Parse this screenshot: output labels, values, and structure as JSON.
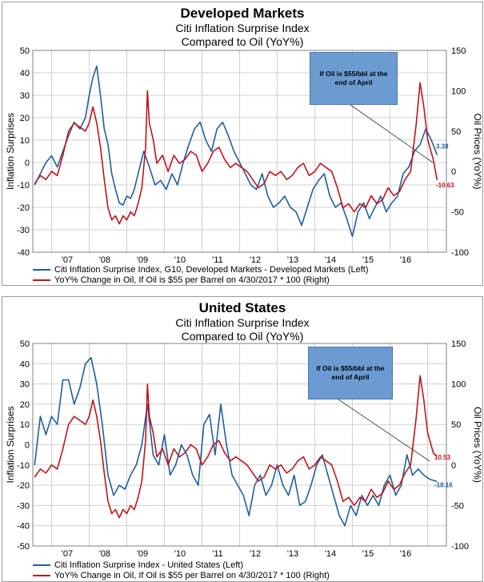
{
  "charts_meta": {
    "colors": {
      "blue": "#1f5f9e",
      "red": "#c0141c",
      "grid": "#d0d0d0"
    }
  },
  "chart_data": [
    {
      "type": "line",
      "title": "Developed Markets",
      "subtitle_1": "Citi Inflation Surprise Index",
      "subtitle_2": "Compared to Oil (YoY%)",
      "ylabel_left": "Inflation Surprises",
      "ylabel_right": "Oil Prices (YoY%)",
      "ylim_left": [
        -40,
        50
      ],
      "ylim_right": [
        -100,
        150
      ],
      "yticks_left": [
        "50",
        "40",
        "30",
        "20",
        "10",
        "0",
        "-10",
        "-20",
        "-30",
        "-40"
      ],
      "yticks_right": [
        "150",
        "100",
        "50",
        "0",
        "-50",
        "-100"
      ],
      "x_ticks": [
        "'07",
        "'08",
        "'09",
        "'10",
        "'11",
        "'12",
        "'13",
        "'14",
        "'15",
        "'16"
      ],
      "xlim": [
        2006.5,
        2017.5
      ],
      "annotation": "If Oil is $55/bbl at the end of April",
      "end_label_blue": "3.38",
      "end_label_red": "-10.63",
      "series": [
        {
          "name": "Citi Inflation Surprise Index, G10, Developed Markets - Developed Markets (Left)",
          "axis": "left",
          "color": "#1f5f9e",
          "x": [
            2006.55,
            2006.7,
            2006.85,
            2007.0,
            2007.15,
            2007.3,
            2007.45,
            2007.6,
            2007.75,
            2007.9,
            2008.0,
            2008.1,
            2008.2,
            2008.3,
            2008.4,
            2008.5,
            2008.6,
            2008.7,
            2008.8,
            2008.9,
            2009.0,
            2009.1,
            2009.2,
            2009.3,
            2009.45,
            2009.6,
            2009.75,
            2009.9,
            2010.05,
            2010.2,
            2010.35,
            2010.5,
            2010.65,
            2010.8,
            2010.95,
            2011.1,
            2011.25,
            2011.4,
            2011.55,
            2011.7,
            2011.85,
            2012.0,
            2012.15,
            2012.3,
            2012.45,
            2012.6,
            2012.75,
            2012.9,
            2013.05,
            2013.2,
            2013.35,
            2013.5,
            2013.65,
            2013.8,
            2013.95,
            2014.1,
            2014.25,
            2014.4,
            2014.55,
            2014.7,
            2014.85,
            2015.0,
            2015.15,
            2015.3,
            2015.45,
            2015.6,
            2015.75,
            2015.9,
            2016.05,
            2016.2,
            2016.35,
            2016.5,
            2016.65,
            2016.8,
            2016.95,
            2017.1,
            2017.25
          ],
          "values": [
            -10,
            -5,
            0,
            3,
            -2,
            5,
            12,
            18,
            15,
            20,
            30,
            38,
            43,
            30,
            15,
            8,
            -5,
            -12,
            -18,
            -19,
            -15,
            -16,
            -12,
            -5,
            5,
            -2,
            -10,
            -8,
            -12,
            -5,
            -10,
            0,
            8,
            15,
            18,
            10,
            5,
            15,
            18,
            12,
            5,
            0,
            -5,
            -10,
            -12,
            -5,
            -15,
            -20,
            -18,
            -15,
            -20,
            -22,
            -28,
            -20,
            -12,
            -8,
            -5,
            -15,
            -20,
            -18,
            -25,
            -33,
            -22,
            -18,
            -25,
            -20,
            -15,
            -22,
            -18,
            -15,
            -5,
            -2,
            5,
            8,
            15,
            10,
            3.4
          ]
        },
        {
          "name": "YoY% Change in Oil, If Oil is $55 per Barrel on 4/30/2017 * 100 (Right)",
          "axis": "right",
          "color": "#c0141c",
          "x": [
            2006.55,
            2006.7,
            2006.85,
            2007.0,
            2007.15,
            2007.3,
            2007.45,
            2007.6,
            2007.75,
            2007.9,
            2008.0,
            2008.1,
            2008.2,
            2008.3,
            2008.4,
            2008.5,
            2008.6,
            2008.7,
            2008.8,
            2008.9,
            2009.0,
            2009.1,
            2009.2,
            2009.3,
            2009.4,
            2009.5,
            2009.55,
            2009.6,
            2009.7,
            2009.8,
            2009.95,
            2010.1,
            2010.25,
            2010.4,
            2010.55,
            2010.7,
            2010.85,
            2011.0,
            2011.15,
            2011.3,
            2011.45,
            2011.6,
            2011.75,
            2011.9,
            2012.05,
            2012.2,
            2012.35,
            2012.5,
            2012.65,
            2012.8,
            2012.95,
            2013.1,
            2013.25,
            2013.4,
            2013.55,
            2013.7,
            2013.85,
            2014.0,
            2014.15,
            2014.3,
            2014.45,
            2014.6,
            2014.75,
            2014.9,
            2015.05,
            2015.2,
            2015.35,
            2015.5,
            2015.65,
            2015.8,
            2015.95,
            2016.1,
            2016.25,
            2016.4,
            2016.55,
            2016.6,
            2016.7,
            2016.8,
            2016.9,
            2017.0,
            2017.15,
            2017.25
          ],
          "values": [
            -15,
            -5,
            -10,
            0,
            -5,
            20,
            50,
            60,
            55,
            50,
            60,
            80,
            60,
            30,
            -10,
            -45,
            -60,
            -55,
            -65,
            -55,
            -60,
            -50,
            -55,
            -40,
            -20,
            30,
            100,
            60,
            40,
            10,
            20,
            0,
            20,
            10,
            15,
            25,
            20,
            0,
            10,
            25,
            30,
            15,
            5,
            10,
            5,
            0,
            -10,
            -20,
            -15,
            0,
            -5,
            0,
            -10,
            -5,
            5,
            10,
            -5,
            0,
            10,
            5,
            0,
            -20,
            -45,
            -40,
            -50,
            -40,
            -45,
            -30,
            -40,
            -35,
            -20,
            -30,
            -25,
            -10,
            0,
            20,
            60,
            110,
            80,
            40,
            15,
            -10.6
          ]
        }
      ]
    },
    {
      "type": "line",
      "title": "United States",
      "subtitle_1": "Citi Inflation Surprise Index",
      "subtitle_2": "Compared to Oil (YoY%)",
      "ylabel_left": "Inflation Surprises",
      "ylabel_right": "Oil Prices (YoY%)",
      "ylim_left": [
        -50,
        50
      ],
      "ylim_right": [
        -100,
        150
      ],
      "yticks_left": [
        "50",
        "40",
        "30",
        "20",
        "10",
        "0",
        "-10",
        "-20",
        "-30",
        "-40",
        "-50"
      ],
      "yticks_right": [
        "150",
        "100",
        "50",
        "0",
        "-50",
        "-100"
      ],
      "x_ticks": [
        "'07",
        "'08",
        "'09",
        "'10",
        "'11",
        "'12",
        "'13",
        "'14",
        "'15",
        "'16"
      ],
      "xlim": [
        2006.5,
        2017.5
      ],
      "annotation": "If Oil is $55/bbl at the end of April",
      "end_label_blue": "-18.16",
      "end_label_red": "10.53",
      "series": [
        {
          "name": "Citi Inflation Surprise Index - United States (Left)",
          "axis": "left",
          "color": "#1f5f9e",
          "x": [
            2006.55,
            2006.7,
            2006.85,
            2007.0,
            2007.15,
            2007.3,
            2007.45,
            2007.6,
            2007.75,
            2007.9,
            2008.05,
            2008.2,
            2008.35,
            2008.5,
            2008.65,
            2008.8,
            2008.95,
            2009.1,
            2009.25,
            2009.4,
            2009.55,
            2009.7,
            2009.85,
            2010.0,
            2010.15,
            2010.3,
            2010.45,
            2010.6,
            2010.75,
            2010.9,
            2011.05,
            2011.2,
            2011.35,
            2011.5,
            2011.65,
            2011.8,
            2011.95,
            2012.1,
            2012.25,
            2012.4,
            2012.55,
            2012.7,
            2012.85,
            2013.0,
            2013.15,
            2013.3,
            2013.45,
            2013.6,
            2013.75,
            2013.9,
            2014.05,
            2014.2,
            2014.35,
            2014.5,
            2014.65,
            2014.8,
            2014.95,
            2015.1,
            2015.25,
            2015.4,
            2015.55,
            2015.7,
            2015.85,
            2016.0,
            2016.15,
            2016.3,
            2016.45,
            2016.6,
            2016.75,
            2016.9,
            2017.05,
            2017.25
          ],
          "values": [
            -10,
            14,
            5,
            14,
            10,
            32,
            32,
            20,
            28,
            40,
            43,
            30,
            10,
            -15,
            -25,
            -20,
            -22,
            -15,
            -10,
            0,
            20,
            -5,
            -10,
            5,
            -15,
            -10,
            0,
            -5,
            -15,
            -20,
            10,
            15,
            -5,
            20,
            0,
            -15,
            -20,
            -25,
            -35,
            -20,
            -15,
            -25,
            -20,
            -10,
            -20,
            -25,
            -15,
            -30,
            -28,
            -20,
            -10,
            -5,
            -15,
            -25,
            -35,
            -40,
            -30,
            -35,
            -25,
            -30,
            -25,
            -30,
            -20,
            -15,
            -25,
            -20,
            -5,
            -15,
            -12,
            -15,
            -17,
            -18.2
          ]
        },
        {
          "name": "YoY% Change in Oil, If Oil is $55 per Barrel on 4/30/2017 * 100 (Right)",
          "axis": "right",
          "color": "#c0141c",
          "x": [
            2006.55,
            2006.7,
            2006.85,
            2007.0,
            2007.15,
            2007.3,
            2007.45,
            2007.6,
            2007.75,
            2007.9,
            2008.0,
            2008.1,
            2008.2,
            2008.3,
            2008.4,
            2008.5,
            2008.6,
            2008.7,
            2008.8,
            2008.9,
            2009.0,
            2009.1,
            2009.2,
            2009.3,
            2009.4,
            2009.5,
            2009.55,
            2009.6,
            2009.7,
            2009.8,
            2009.95,
            2010.1,
            2010.25,
            2010.4,
            2010.55,
            2010.7,
            2010.85,
            2011.0,
            2011.15,
            2011.3,
            2011.45,
            2011.6,
            2011.75,
            2011.9,
            2012.05,
            2012.2,
            2012.35,
            2012.5,
            2012.65,
            2012.8,
            2012.95,
            2013.1,
            2013.25,
            2013.4,
            2013.55,
            2013.7,
            2013.85,
            2014.0,
            2014.15,
            2014.3,
            2014.45,
            2014.6,
            2014.75,
            2014.9,
            2015.05,
            2015.2,
            2015.35,
            2015.5,
            2015.65,
            2015.8,
            2015.95,
            2016.1,
            2016.25,
            2016.4,
            2016.55,
            2016.6,
            2016.7,
            2016.8,
            2016.9,
            2017.0,
            2017.15,
            2017.25
          ],
          "values": [
            -15,
            -5,
            -10,
            0,
            -5,
            20,
            50,
            60,
            55,
            50,
            60,
            80,
            60,
            30,
            -10,
            -45,
            -60,
            -55,
            -65,
            -55,
            -60,
            -50,
            -55,
            -40,
            -20,
            30,
            100,
            60,
            40,
            10,
            20,
            0,
            20,
            10,
            15,
            25,
            20,
            0,
            10,
            25,
            30,
            15,
            5,
            10,
            5,
            0,
            -10,
            -20,
            -15,
            0,
            -5,
            0,
            -10,
            -5,
            5,
            10,
            -5,
            0,
            10,
            5,
            0,
            -20,
            -45,
            -40,
            -50,
            -40,
            -45,
            -30,
            -40,
            -35,
            -20,
            -30,
            -25,
            -10,
            0,
            20,
            60,
            110,
            80,
            40,
            15,
            10.5
          ]
        }
      ]
    }
  ]
}
